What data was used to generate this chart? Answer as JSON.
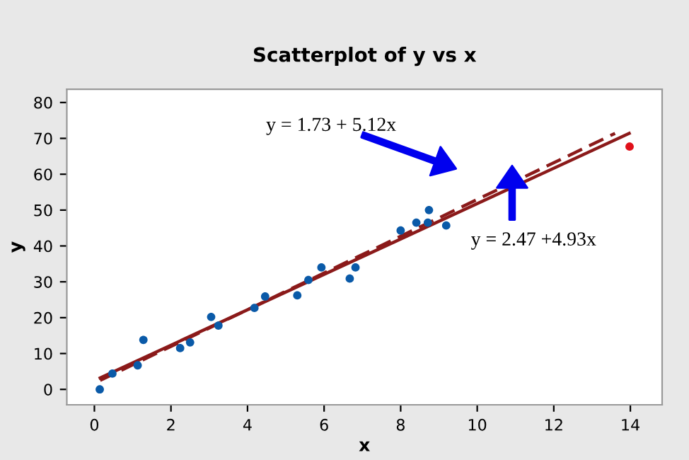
{
  "chart_data": {
    "type": "scatter",
    "title": "Scatterplot of y vs x",
    "xlabel": "x",
    "ylabel": "y",
    "xlim": [
      -0.72,
      14.83
    ],
    "ylim": [
      -4.3,
      83.7
    ],
    "xticks": [
      0,
      2,
      4,
      6,
      8,
      10,
      12,
      14
    ],
    "yticks": [
      0,
      10,
      20,
      30,
      40,
      50,
      60,
      70,
      80
    ],
    "grid": false,
    "series": [
      {
        "marker": "circle",
        "color": "#0a5aa8",
        "x": [
          0.14,
          0.47,
          1.13,
          1.28,
          2.24,
          2.5,
          3.05,
          3.24,
          4.18,
          4.46,
          5.3,
          5.59,
          5.93,
          6.67,
          6.82,
          8.0,
          8.41,
          8.74,
          8.71,
          9.19
        ],
        "values": [
          0,
          4.4,
          6.7,
          13.8,
          11.5,
          13.1,
          20.2,
          17.8,
          22.7,
          25.9,
          26.2,
          30.5,
          34.0,
          30.9,
          34.0,
          44.3,
          46.5,
          50.0,
          46.5,
          45.7
        ]
      },
      {
        "marker": "circle",
        "color": "#e0101a",
        "x": [
          13.98
        ],
        "values": [
          67.7
        ]
      },
      {
        "type": "line",
        "line_style": "dashed",
        "color": "#8b1a1a",
        "x": [
          0.15,
          13.6
        ],
        "values": [
          2.5,
          71.4
        ]
      },
      {
        "type": "line",
        "line_style": "solid",
        "color": "#8b1a1a",
        "x": [
          0.15,
          13.97
        ],
        "values": [
          3.2,
          71.4
        ]
      }
    ],
    "annotations": [
      "y = 1.73 + 5.12x",
      "y = 2.47 +4.93x"
    ]
  }
}
